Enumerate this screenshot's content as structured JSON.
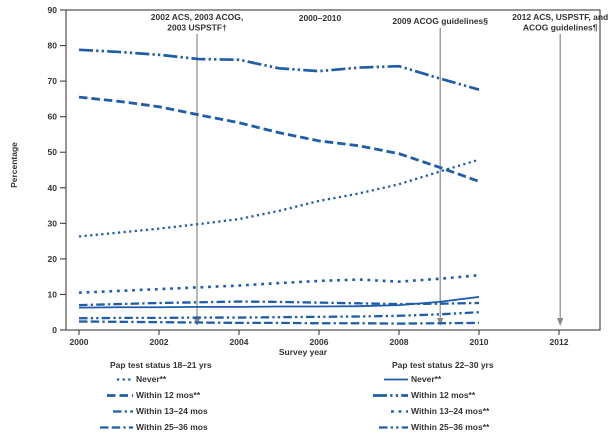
{
  "figure": {
    "colors": {
      "line_blue": "#1F5CA9",
      "annotation_line": "#8B8B7E",
      "axis": "#3F3F3F",
      "text": "#333333"
    }
  },
  "chart_data": {
    "type": "line",
    "title": "2000–2010",
    "xlabel": "Survey year",
    "ylabel": "Percentage",
    "ylim": [
      0,
      90
    ],
    "xlim": [
      2000,
      2013
    ],
    "grid": false,
    "legend_position": "below plot, two columns",
    "x": [
      2000,
      2001,
      2002,
      2003,
      2004,
      2005,
      2006,
      2007,
      2008,
      2009,
      2010
    ],
    "xticks": [
      2000,
      2002,
      2004,
      2006,
      2008,
      2010,
      2012
    ],
    "yticks": [
      0,
      10,
      20,
      30,
      40,
      50,
      60,
      70,
      80,
      90
    ],
    "series": [
      {
        "name": "Never** (18–21 yrs)",
        "group": "Pap test status 18–21 yrs",
        "dash": "dotted",
        "values": [
          26.3,
          27.4,
          28.5,
          29.8,
          31.2,
          33.5,
          36.3,
          38.4,
          41.0,
          44.5,
          47.9
        ]
      },
      {
        "name": "Within 12 mos** (18–21 yrs)",
        "group": "Pap test status 18–21 yrs",
        "dash": "dash",
        "values": [
          65.5,
          64.3,
          62.8,
          60.5,
          58.3,
          55.5,
          53.2,
          51.8,
          49.6,
          45.8,
          41.8
        ]
      },
      {
        "name": "Within 13–24 mos (18–21 yrs)",
        "group": "Pap test status 18–21 yrs",
        "dash": "dash-dot",
        "values": [
          7.0,
          7.3,
          7.6,
          7.8,
          8.0,
          7.9,
          7.7,
          7.5,
          7.3,
          7.4,
          7.6
        ]
      },
      {
        "name": "Within 25–36 mos (18–21 yrs)",
        "group": "Pap test status 18–21 yrs",
        "dash": "dash-dash-dot",
        "values": [
          2.4,
          2.3,
          2.2,
          2.1,
          2.0,
          2.0,
          1.9,
          1.9,
          1.8,
          1.9,
          2.0
        ]
      },
      {
        "name": "Never** (22–30 yrs)",
        "group": "Pap test status 22–30 yrs",
        "dash": "solid",
        "values": [
          6.3,
          6.4,
          6.4,
          6.5,
          6.5,
          6.6,
          6.6,
          6.7,
          7.0,
          7.9,
          9.3
        ]
      },
      {
        "name": "Within 12 mos** (22–30 yrs)",
        "group": "Pap test status 22–30 yrs",
        "dash": "longdash-dot-dot",
        "values": [
          78.8,
          78.2,
          77.4,
          76.2,
          76.0,
          73.6,
          72.8,
          73.8,
          74.2,
          70.8,
          67.6
        ]
      },
      {
        "name": "Within 13–24 mos** (22–30 yrs)",
        "group": "Pap test status 22–30 yrs",
        "dash": "sq-dots",
        "values": [
          10.5,
          11.0,
          11.5,
          12.0,
          12.5,
          13.2,
          13.8,
          14.2,
          13.6,
          14.4,
          15.4
        ]
      },
      {
        "name": "Within 25–36 mos** (22–30 yrs)",
        "group": "Pap test status 22–30 yrs",
        "dash": "dash-dot-dot",
        "values": [
          3.3,
          3.4,
          3.4,
          3.5,
          3.5,
          3.6,
          3.7,
          3.8,
          4.0,
          4.4,
          5.0
        ]
      }
    ],
    "annotations": [
      {
        "lines": [
          "2002 ACS, 2003 ACOG,",
          "2003 USPSTF†"
        ],
        "x": 2002.95
      },
      {
        "lines": [
          "2009 ACOG guidelines§"
        ],
        "x": 2009.03
      },
      {
        "lines": [
          "2012 ACS, USPSTF, and",
          "ACOG guidelines¶"
        ],
        "x": 2012.03
      }
    ]
  },
  "legend": {
    "groups": [
      {
        "title": "Pap test status 18–21 yrs",
        "items": [
          {
            "label": "Never**",
            "dash": "dotted",
            "sample_len": 16
          },
          {
            "label": "Within 12 mos**",
            "dash": "dash",
            "sample_len": 26
          },
          {
            "label": "Within 13–24 mos",
            "dash": "dash-dot",
            "sample_len": 20
          },
          {
            "label": "Within 25–36 mos",
            "dash": "dash-dash-dot",
            "sample_len": 33
          }
        ]
      },
      {
        "title": "Pap test status 22–30 yrs",
        "items": [
          {
            "label": "Never**",
            "dash": "solid",
            "sample_len": 24
          },
          {
            "label": "Within 12 mos**",
            "dash": "longdash-dot-dot",
            "sample_len": 35
          },
          {
            "label": "Within 13–24 mos**",
            "dash": "sq-dots",
            "sample_len": 17
          },
          {
            "label": "Within 25–36 mos**",
            "dash": "dash-dot-dot",
            "sample_len": 29
          }
        ]
      }
    ]
  }
}
